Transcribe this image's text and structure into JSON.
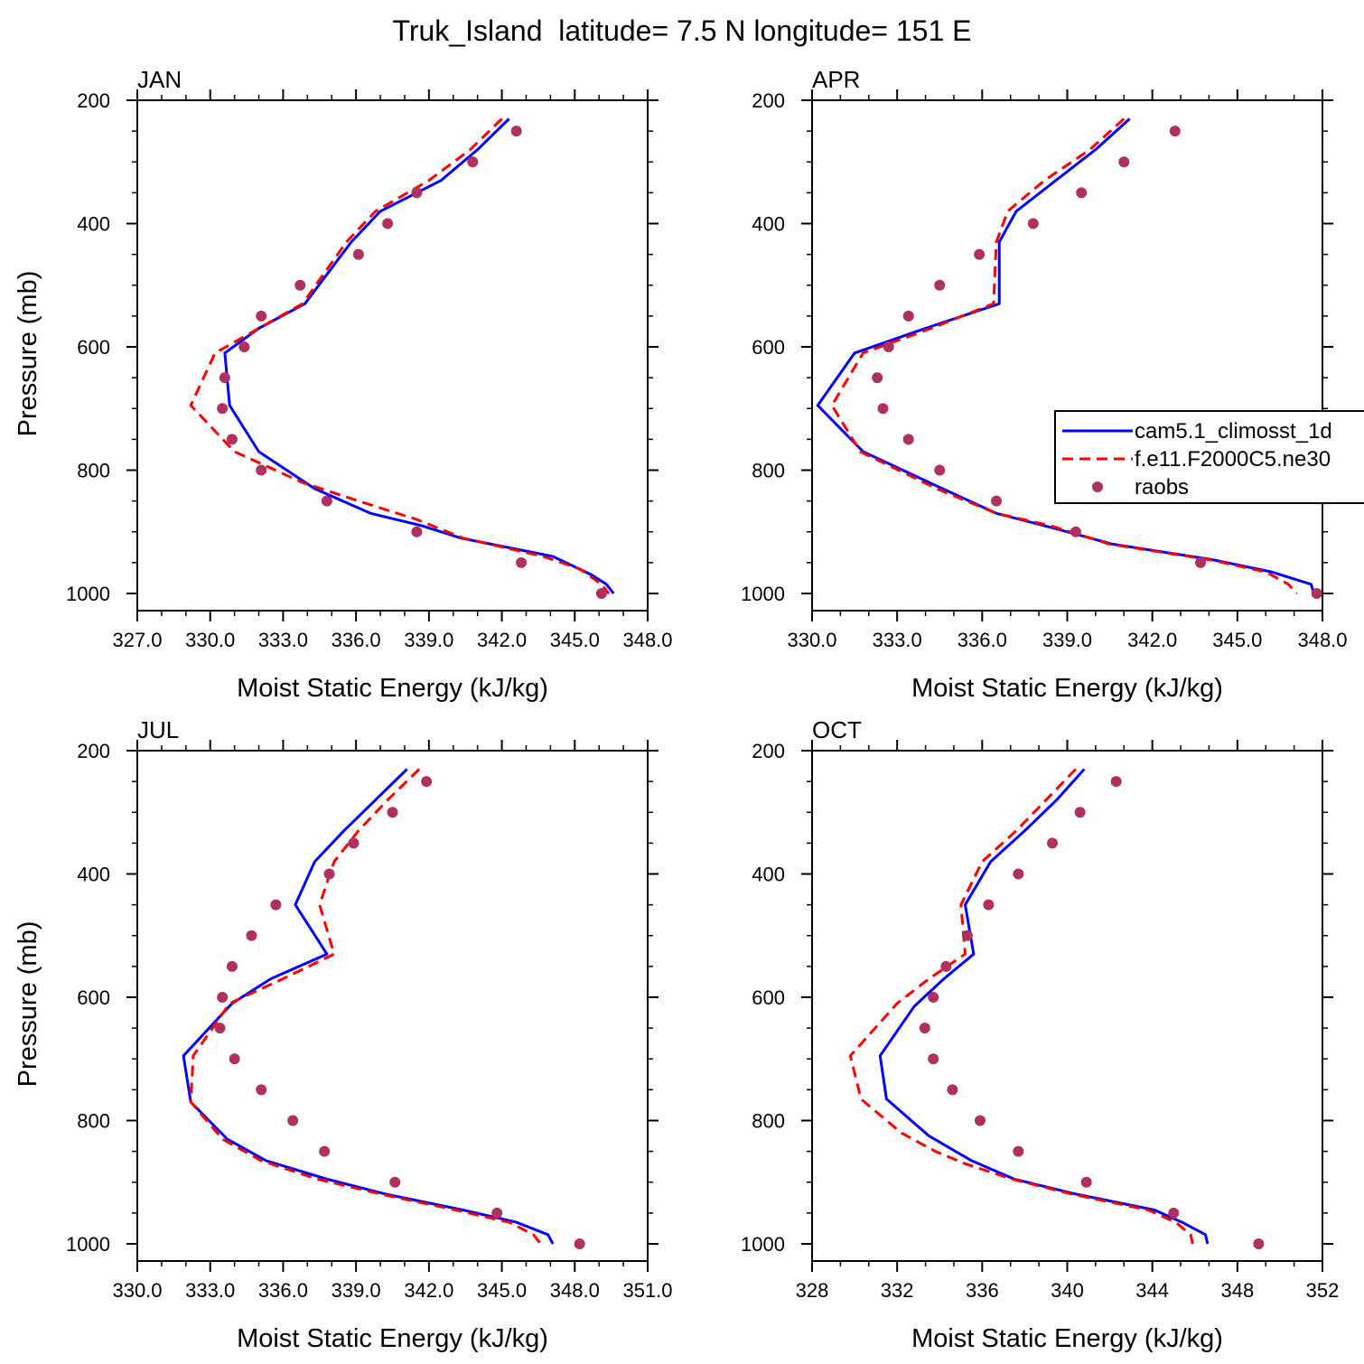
{
  "figure": {
    "title": "Truk_Island  latitude= 7.5 N longitude= 151 E"
  },
  "legend": {
    "entries": [
      {
        "name": "cam5.1_climosst_1d",
        "color": "#0000ff",
        "style": "solid"
      },
      {
        "name": "f.e11.F2000C5.ne30",
        "color": "#ff0000",
        "style": "dashed"
      },
      {
        "name": "raobs",
        "color": "#b03060",
        "style": "marker"
      }
    ]
  },
  "colors": {
    "cam": "#0000ff",
    "f2000": "#ff0000",
    "raobs": "#b03060"
  },
  "chart_data": [
    {
      "type": "line",
      "panel_label": "JAN",
      "xlabel": "Moist Static Energy (kJ/kg)",
      "ylabel": "Pressure (mb)",
      "xlim": [
        327,
        348
      ],
      "ylim": [
        1000,
        200
      ],
      "xticks": [
        "327.0",
        "330.0",
        "333.0",
        "336.0",
        "339.0",
        "342.0",
        "345.0",
        "348.0"
      ],
      "yticks": [
        "200",
        "400",
        "600",
        "800",
        "1000"
      ],
      "series": [
        {
          "name": "cam5.1_climosst_1d",
          "points": [
            [
              342.3,
              230
            ],
            [
              341.0,
              280
            ],
            [
              339.5,
              330
            ],
            [
              337.0,
              380
            ],
            [
              335.8,
              430
            ],
            [
              333.9,
              530
            ],
            [
              332.0,
              570
            ],
            [
              330.6,
              610
            ],
            [
              330.8,
              695
            ],
            [
              332.0,
              770
            ],
            [
              334.3,
              830
            ],
            [
              336.6,
              870
            ],
            [
              338.7,
              890
            ],
            [
              340.3,
              910
            ],
            [
              344.1,
              940
            ],
            [
              345.7,
              970
            ],
            [
              346.3,
              985
            ],
            [
              346.6,
              1000
            ]
          ]
        },
        {
          "name": "f.e11.F2000C5.ne30",
          "points": [
            [
              342.0,
              230
            ],
            [
              340.7,
              280
            ],
            [
              339.0,
              330
            ],
            [
              336.8,
              380
            ],
            [
              335.6,
              430
            ],
            [
              333.8,
              530
            ],
            [
              332.0,
              570
            ],
            [
              330.2,
              610
            ],
            [
              329.2,
              695
            ],
            [
              331.0,
              770
            ],
            [
              333.8,
              820
            ],
            [
              336.1,
              850
            ],
            [
              338.5,
              880
            ],
            [
              340.4,
              910
            ],
            [
              343.7,
              940
            ],
            [
              345.2,
              960
            ],
            [
              346.1,
              985
            ],
            [
              346.4,
              1000
            ]
          ]
        },
        {
          "name": "raobs",
          "points": [
            [
              342.6,
              250
            ],
            [
              340.8,
              300
            ],
            [
              338.5,
              350
            ],
            [
              337.3,
              400
            ],
            [
              336.1,
              450
            ],
            [
              333.7,
              500
            ],
            [
              332.1,
              550
            ],
            [
              331.4,
              600
            ],
            [
              330.6,
              650
            ],
            [
              330.5,
              700
            ],
            [
              330.9,
              750
            ],
            [
              332.1,
              800
            ],
            [
              334.8,
              850
            ],
            [
              338.5,
              900
            ],
            [
              342.8,
              950
            ],
            [
              346.1,
              1000
            ]
          ]
        }
      ]
    },
    {
      "type": "line",
      "panel_label": "APR",
      "xlabel": "Moist Static Energy (kJ/kg)",
      "ylabel": "Pressure (mb)",
      "xlim": [
        330,
        348
      ],
      "ylim": [
        1000,
        200
      ],
      "xticks": [
        "330.0",
        "333.0",
        "336.0",
        "339.0",
        "342.0",
        "345.0",
        "348.0"
      ],
      "yticks": [
        "200",
        "400",
        "600",
        "800",
        "1000"
      ],
      "series": [
        {
          "name": "cam5.1_climosst_1d",
          "points": [
            [
              341.2,
              230
            ],
            [
              340.0,
              280
            ],
            [
              338.6,
              330
            ],
            [
              337.2,
              380
            ],
            [
              336.6,
              430
            ],
            [
              336.6,
              530
            ],
            [
              334.0,
              570
            ],
            [
              331.5,
              610
            ],
            [
              330.2,
              695
            ],
            [
              331.8,
              770
            ],
            [
              334.6,
              830
            ],
            [
              336.5,
              870
            ],
            [
              338.6,
              895
            ],
            [
              340.6,
              920
            ],
            [
              344.1,
              945
            ],
            [
              346.2,
              965
            ],
            [
              347.6,
              985
            ],
            [
              347.7,
              1000
            ]
          ]
        },
        {
          "name": "f.e11.F2000C5.ne30",
          "points": [
            [
              341.0,
              230
            ],
            [
              339.8,
              280
            ],
            [
              338.2,
              330
            ],
            [
              336.9,
              380
            ],
            [
              336.5,
              430
            ],
            [
              336.4,
              530
            ],
            [
              334.2,
              570
            ],
            [
              331.8,
              610
            ],
            [
              330.7,
              695
            ],
            [
              331.7,
              770
            ],
            [
              334.4,
              830
            ],
            [
              336.5,
              870
            ],
            [
              338.4,
              890
            ],
            [
              340.5,
              920
            ],
            [
              344.0,
              945
            ],
            [
              346.0,
              965
            ],
            [
              346.8,
              985
            ],
            [
              347.1,
              1000
            ]
          ]
        },
        {
          "name": "raobs",
          "points": [
            [
              342.8,
              250
            ],
            [
              341.0,
              300
            ],
            [
              339.5,
              350
            ],
            [
              337.8,
              400
            ],
            [
              335.9,
              450
            ],
            [
              334.5,
              500
            ],
            [
              333.4,
              550
            ],
            [
              332.7,
              600
            ],
            [
              332.3,
              650
            ],
            [
              332.5,
              700
            ],
            [
              333.4,
              750
            ],
            [
              334.5,
              800
            ],
            [
              336.5,
              850
            ],
            [
              339.3,
              900
            ],
            [
              343.7,
              950
            ],
            [
              347.8,
              1000
            ]
          ]
        }
      ]
    },
    {
      "type": "line",
      "panel_label": "JUL",
      "xlabel": "Moist Static Energy (kJ/kg)",
      "ylabel": "Pressure (mb)",
      "xlim": [
        330,
        351
      ],
      "ylim": [
        1000,
        200
      ],
      "xticks": [
        "330.0",
        "333.0",
        "336.0",
        "339.0",
        "342.0",
        "345.0",
        "348.0",
        "351.0"
      ],
      "yticks": [
        "200",
        "400",
        "600",
        "800",
        "1000"
      ],
      "series": [
        {
          "name": "cam5.1_climosst_1d",
          "points": [
            [
              341.1,
              230
            ],
            [
              339.8,
              280
            ],
            [
              338.5,
              330
            ],
            [
              337.3,
              380
            ],
            [
              336.5,
              450
            ],
            [
              337.8,
              530
            ],
            [
              335.5,
              570
            ],
            [
              333.9,
              610
            ],
            [
              331.9,
              695
            ],
            [
              332.2,
              770
            ],
            [
              333.7,
              830
            ],
            [
              335.3,
              865
            ],
            [
              337.8,
              895
            ],
            [
              340.3,
              920
            ],
            [
              343.4,
              945
            ],
            [
              345.6,
              965
            ],
            [
              346.9,
              985
            ],
            [
              347.1,
              1000
            ]
          ]
        },
        {
          "name": "f.e11.F2000C5.ne30",
          "points": [
            [
              341.6,
              230
            ],
            [
              340.3,
              280
            ],
            [
              339.1,
              330
            ],
            [
              338.1,
              380
            ],
            [
              337.5,
              450
            ],
            [
              338.1,
              530
            ],
            [
              336.0,
              570
            ],
            [
              333.8,
              610
            ],
            [
              332.3,
              695
            ],
            [
              332.2,
              770
            ],
            [
              333.5,
              830
            ],
            [
              335.1,
              865
            ],
            [
              337.4,
              895
            ],
            [
              340.1,
              920
            ],
            [
              343.1,
              945
            ],
            [
              345.3,
              965
            ],
            [
              346.3,
              985
            ],
            [
              346.6,
              1000
            ]
          ]
        },
        {
          "name": "raobs",
          "points": [
            [
              341.9,
              250
            ],
            [
              340.5,
              300
            ],
            [
              338.9,
              350
            ],
            [
              337.9,
              400
            ],
            [
              335.7,
              450
            ],
            [
              334.7,
              500
            ],
            [
              333.9,
              550
            ],
            [
              333.5,
              600
            ],
            [
              333.4,
              650
            ],
            [
              334.0,
              700
            ],
            [
              335.1,
              750
            ],
            [
              336.4,
              800
            ],
            [
              337.7,
              850
            ],
            [
              340.6,
              900
            ],
            [
              344.8,
              950
            ],
            [
              348.2,
              1000
            ]
          ]
        }
      ]
    },
    {
      "type": "line",
      "panel_label": "OCT",
      "xlabel": "Moist Static Energy (kJ/kg)",
      "ylabel": "Pressure (mb)",
      "xlim": [
        328,
        352
      ],
      "ylim": [
        1000,
        200
      ],
      "xticks": [
        "328",
        "332",
        "336",
        "340",
        "344",
        "348",
        "352"
      ],
      "yticks": [
        "200",
        "400",
        "600",
        "800",
        "1000"
      ],
      "series": [
        {
          "name": "cam5.1_climosst_1d",
          "points": [
            [
              340.8,
              230
            ],
            [
              339.5,
              280
            ],
            [
              338.0,
              330
            ],
            [
              336.4,
              380
            ],
            [
              335.2,
              450
            ],
            [
              335.6,
              530
            ],
            [
              334.2,
              570
            ],
            [
              332.8,
              615
            ],
            [
              331.2,
              695
            ],
            [
              331.5,
              765
            ],
            [
              333.5,
              825
            ],
            [
              335.5,
              865
            ],
            [
              337.5,
              895
            ],
            [
              340.5,
              920
            ],
            [
              344.1,
              945
            ],
            [
              345.4,
              965
            ],
            [
              346.5,
              985
            ],
            [
              346.6,
              1000
            ]
          ]
        },
        {
          "name": "f.e11.F2000C5.ne30",
          "points": [
            [
              340.4,
              230
            ],
            [
              339.0,
              280
            ],
            [
              337.6,
              330
            ],
            [
              336.0,
              380
            ],
            [
              335.0,
              450
            ],
            [
              335.2,
              530
            ],
            [
              333.5,
              570
            ],
            [
              332.0,
              610
            ],
            [
              329.8,
              695
            ],
            [
              330.3,
              765
            ],
            [
              332.2,
              820
            ],
            [
              333.8,
              850
            ],
            [
              335.2,
              870
            ],
            [
              337.4,
              895
            ],
            [
              340.3,
              920
            ],
            [
              343.8,
              945
            ],
            [
              345.1,
              965
            ],
            [
              345.8,
              985
            ],
            [
              345.9,
              1000
            ]
          ]
        },
        {
          "name": "raobs",
          "points": [
            [
              342.3,
              250
            ],
            [
              340.6,
              300
            ],
            [
              339.3,
              350
            ],
            [
              337.7,
              400
            ],
            [
              336.3,
              450
            ],
            [
              335.3,
              500
            ],
            [
              334.3,
              550
            ],
            [
              333.7,
              600
            ],
            [
              333.3,
              650
            ],
            [
              333.7,
              700
            ],
            [
              334.6,
              750
            ],
            [
              335.9,
              800
            ],
            [
              337.7,
              850
            ],
            [
              340.9,
              900
            ],
            [
              345.0,
              950
            ],
            [
              349.0,
              1000
            ]
          ]
        }
      ]
    }
  ]
}
